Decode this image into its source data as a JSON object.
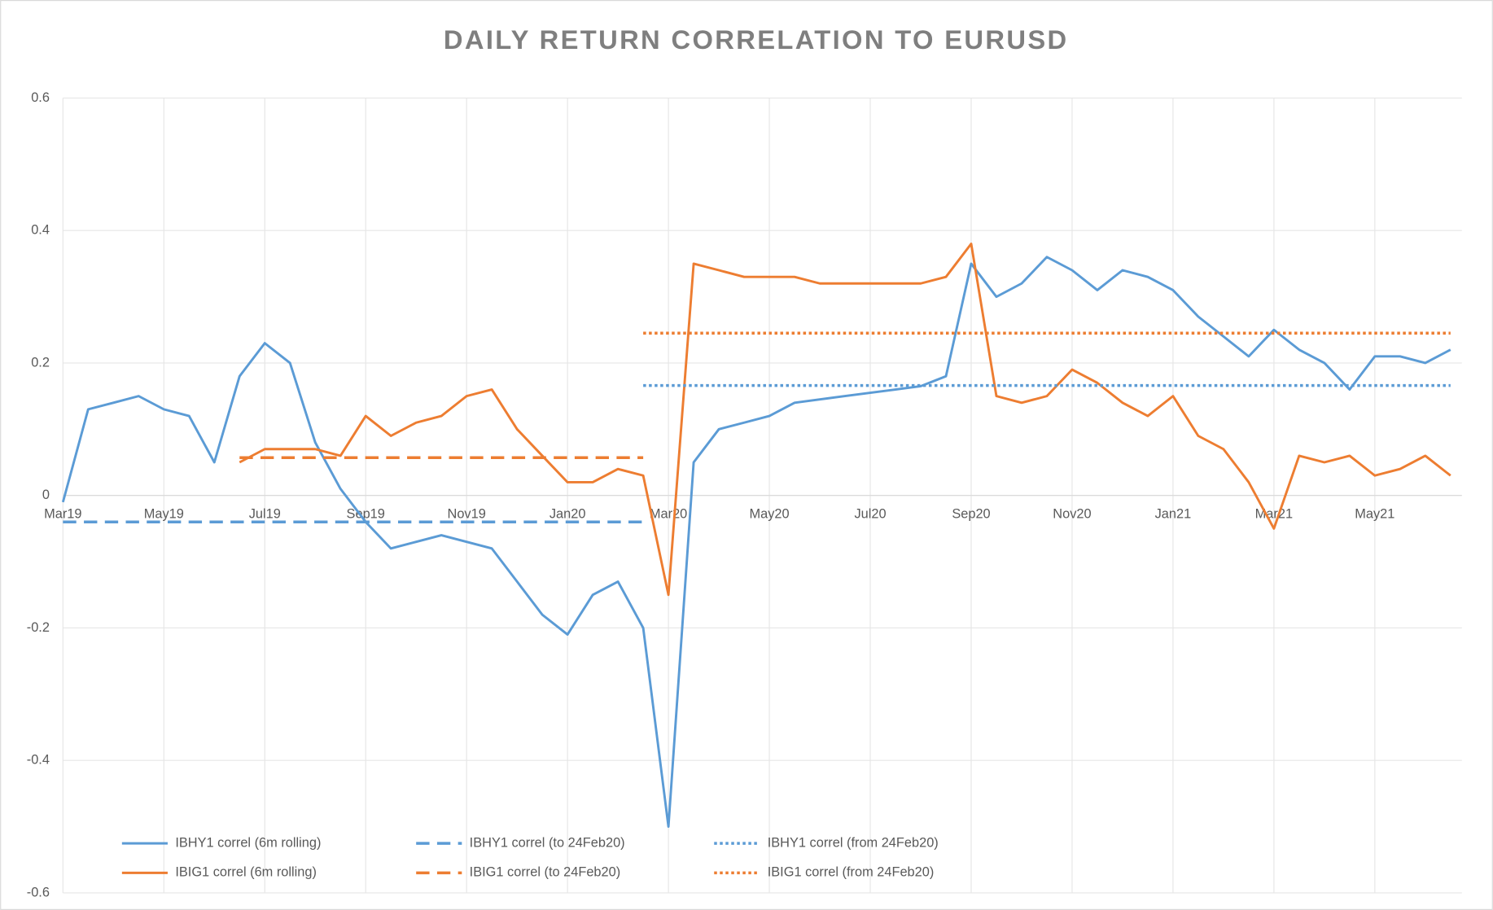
{
  "chart_data": {
    "type": "line",
    "title": "DAILY RETURN CORRELATION TO EURUSD",
    "categories": [
      "Mar19",
      null,
      null,
      null,
      "May19",
      null,
      null,
      null,
      "Jul19",
      null,
      null,
      null,
      "Sep19",
      null,
      null,
      null,
      "Nov19",
      null,
      null,
      null,
      "Jan20",
      null,
      null,
      null,
      "Mar20",
      null,
      null,
      null,
      "May20",
      null,
      null,
      null,
      "Jul20",
      null,
      null,
      null,
      "Sep20",
      null,
      null,
      null,
      "Nov20",
      null,
      null,
      null,
      "Jan21",
      null,
      null,
      null,
      "Mar21",
      null,
      null,
      null,
      "May21",
      null,
      null,
      null
    ],
    "ylim": [
      -0.6,
      0.6
    ],
    "yticks": [
      -0.6,
      -0.4,
      -0.2,
      0,
      0.2,
      0.4,
      0.6
    ],
    "grid": true,
    "legend": "bottom",
    "series": [
      {
        "name": "IBHY1 correl (6m rolling)",
        "color": "#5b9bd5",
        "dash": "solid",
        "values": [
          -0.01,
          0.13,
          0.14,
          0.15,
          0.13,
          0.12,
          0.05,
          0.18,
          0.23,
          0.2,
          0.08,
          0.01,
          -0.04,
          -0.08,
          -0.07,
          -0.06,
          -0.07,
          -0.08,
          -0.13,
          -0.18,
          -0.21,
          -0.15,
          -0.13,
          -0.2,
          -0.5,
          0.05,
          0.1,
          0.11,
          0.12,
          0.14,
          0.145,
          0.15,
          0.155,
          0.16,
          0.165,
          0.18,
          0.35,
          0.3,
          0.32,
          0.36,
          0.34,
          0.31,
          0.34,
          0.33,
          0.31,
          0.27,
          0.24,
          0.21,
          0.25,
          0.22,
          0.2,
          0.16,
          0.21,
          0.21,
          0.2,
          0.22
        ]
      },
      {
        "name": "IBIG1 correl (6m rolling)",
        "color": "#ed7d31",
        "dash": "solid",
        "values": [
          null,
          null,
          null,
          null,
          null,
          null,
          null,
          0.05,
          0.07,
          0.07,
          0.07,
          0.06,
          0.12,
          0.09,
          0.11,
          0.12,
          0.15,
          0.16,
          0.1,
          0.06,
          0.02,
          0.02,
          0.04,
          0.03,
          -0.15,
          0.35,
          0.34,
          0.33,
          0.33,
          0.33,
          0.32,
          0.32,
          0.32,
          0.32,
          0.32,
          0.33,
          0.38,
          0.15,
          0.14,
          0.15,
          0.19,
          0.17,
          0.14,
          0.12,
          0.15,
          0.09,
          0.07,
          0.02,
          -0.05,
          0.06,
          0.05,
          0.06,
          0.03,
          0.04,
          0.06,
          0.03
        ]
      },
      {
        "name": "IBHY1 correl (to 24Feb20)",
        "color": "#5b9bd5",
        "dash": "dashed",
        "values": [
          -0.04,
          -0.04,
          -0.04,
          -0.04,
          -0.04,
          -0.04,
          -0.04,
          -0.04,
          -0.04,
          -0.04,
          -0.04,
          -0.04,
          -0.04,
          -0.04,
          -0.04,
          -0.04,
          -0.04,
          -0.04,
          -0.04,
          -0.04,
          -0.04,
          -0.04,
          -0.04,
          -0.04,
          null,
          null,
          null,
          null,
          null,
          null,
          null,
          null,
          null,
          null,
          null,
          null,
          null,
          null,
          null,
          null,
          null,
          null,
          null,
          null,
          null,
          null,
          null,
          null,
          null,
          null,
          null,
          null,
          null,
          null,
          null,
          null
        ]
      },
      {
        "name": "IBIG1 correl (to 24Feb20)",
        "color": "#ed7d31",
        "dash": "dashed",
        "values": [
          null,
          null,
          null,
          null,
          null,
          null,
          null,
          0.057,
          0.057,
          0.057,
          0.057,
          0.057,
          0.057,
          0.057,
          0.057,
          0.057,
          0.057,
          0.057,
          0.057,
          0.057,
          0.057,
          0.057,
          0.057,
          0.057,
          null,
          null,
          null,
          null,
          null,
          null,
          null,
          null,
          null,
          null,
          null,
          null,
          null,
          null,
          null,
          null,
          null,
          null,
          null,
          null,
          null,
          null,
          null,
          null,
          null,
          null,
          null,
          null,
          null,
          null,
          null,
          null
        ]
      },
      {
        "name": "IBHY1 correl (from 24Feb20)",
        "color": "#5b9bd5",
        "dash": "dotted",
        "values": [
          null,
          null,
          null,
          null,
          null,
          null,
          null,
          null,
          null,
          null,
          null,
          null,
          null,
          null,
          null,
          null,
          null,
          null,
          null,
          null,
          null,
          null,
          null,
          0.166,
          0.166,
          0.166,
          0.166,
          0.166,
          0.166,
          0.166,
          0.166,
          0.166,
          0.166,
          0.166,
          0.166,
          0.166,
          0.166,
          0.166,
          0.166,
          0.166,
          0.166,
          0.166,
          0.166,
          0.166,
          0.166,
          0.166,
          0.166,
          0.166,
          0.166,
          0.166,
          0.166,
          0.166,
          0.166,
          0.166,
          0.166,
          0.166
        ]
      },
      {
        "name": "IBIG1 correl (from 24Feb20)",
        "color": "#ed7d31",
        "dash": "dotted",
        "values": [
          null,
          null,
          null,
          null,
          null,
          null,
          null,
          null,
          null,
          null,
          null,
          null,
          null,
          null,
          null,
          null,
          null,
          null,
          null,
          null,
          null,
          null,
          null,
          0.245,
          0.245,
          0.245,
          0.245,
          0.245,
          0.245,
          0.245,
          0.245,
          0.245,
          0.245,
          0.245,
          0.245,
          0.245,
          0.245,
          0.245,
          0.245,
          0.245,
          0.245,
          0.245,
          0.245,
          0.245,
          0.245,
          0.245,
          0.245,
          0.245,
          0.245,
          0.245,
          0.245,
          0.245,
          0.245,
          0.245,
          0.245,
          0.245
        ]
      }
    ]
  }
}
